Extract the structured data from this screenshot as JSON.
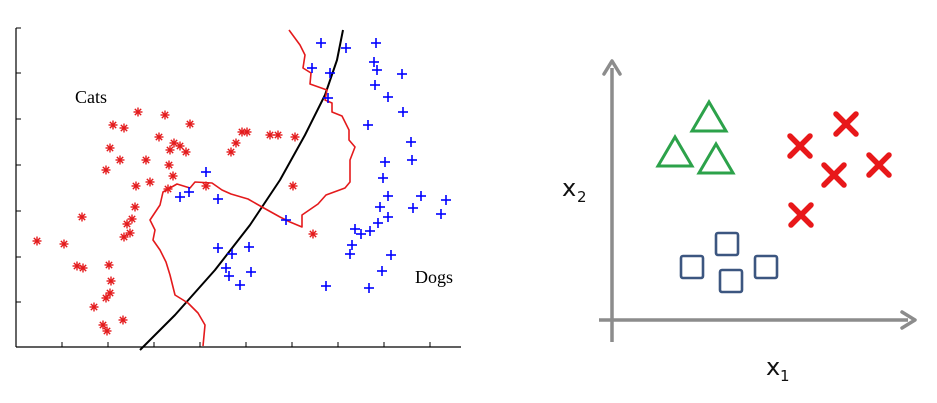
{
  "chart_data": [
    {
      "type": "scatter",
      "annotations": {
        "cats": "Cats",
        "dogs": "Dogs"
      },
      "series": [
        {
          "name": "Cats",
          "marker": "asterisk",
          "color": "#e41a1c",
          "points": [
            [
              113,
              125
            ],
            [
              124,
              128
            ],
            [
              138,
              112
            ],
            [
              165,
              115
            ],
            [
              190,
              124
            ],
            [
              242,
              132
            ],
            [
              247,
              132
            ],
            [
              270,
              135
            ],
            [
              278,
              135
            ],
            [
              295,
              137
            ],
            [
              110,
              148
            ],
            [
              120,
              160
            ],
            [
              146,
              160
            ],
            [
              159,
              137
            ],
            [
              170,
              150
            ],
            [
              180,
              146
            ],
            [
              174,
              143
            ],
            [
              231,
              152
            ],
            [
              236,
              143
            ],
            [
              293,
              186
            ],
            [
              106,
              170
            ],
            [
              136,
              186
            ],
            [
              150,
              182
            ],
            [
              173,
              176
            ],
            [
              169,
              165
            ],
            [
              168,
              189
            ],
            [
              186,
              152
            ],
            [
              206,
              186
            ],
            [
              313,
              234
            ],
            [
              37,
              241
            ],
            [
              64,
              244
            ],
            [
              82,
              217
            ],
            [
              127,
              224
            ],
            [
              130,
              233
            ],
            [
              135,
              207
            ],
            [
              132,
              219
            ],
            [
              124,
              237
            ],
            [
              77,
              266
            ],
            [
              83,
              268
            ],
            [
              109,
              265
            ],
            [
              111,
              281
            ],
            [
              94,
              307
            ],
            [
              106,
              298
            ],
            [
              123,
              320
            ],
            [
              103,
              325
            ],
            [
              107,
              331
            ],
            [
              110,
              293
            ]
          ]
        },
        {
          "name": "Dogs",
          "marker": "plus",
          "color": "#0000ff",
          "points": [
            [
              321,
              43
            ],
            [
              346,
              48
            ],
            [
              376,
              43
            ],
            [
              312,
              68
            ],
            [
              330,
              73
            ],
            [
              374,
              62
            ],
            [
              377,
              70
            ],
            [
              402,
              74
            ],
            [
              375,
              85
            ],
            [
              388,
              97
            ],
            [
              328,
              98
            ],
            [
              403,
              112
            ],
            [
              368,
              125
            ],
            [
              411,
              142
            ],
            [
              412,
              160
            ],
            [
              385,
              162
            ],
            [
              388,
              196
            ],
            [
              380,
              207
            ],
            [
              378,
              223
            ],
            [
              388,
              217
            ],
            [
              413,
              208
            ],
            [
              421,
              196
            ],
            [
              446,
              200
            ],
            [
              441,
              214
            ],
            [
              383,
              178
            ],
            [
              206,
              172
            ],
            [
              189,
              192
            ],
            [
              180,
              197
            ],
            [
              218,
              199
            ],
            [
              286,
              220
            ],
            [
              355,
              229
            ],
            [
              361,
              234
            ],
            [
              370,
              231
            ],
            [
              352,
              245
            ],
            [
              350,
              254
            ],
            [
              391,
              255
            ],
            [
              382,
              271
            ],
            [
              369,
              288
            ],
            [
              326,
              286
            ],
            [
              218,
              248
            ],
            [
              232,
              254
            ],
            [
              249,
              247
            ],
            [
              226,
              268
            ],
            [
              229,
              276
            ],
            [
              240,
              285
            ],
            [
              251,
              272
            ]
          ]
        }
      ],
      "curves": [
        {
          "name": "linear-boundary",
          "color": "#000000",
          "points": [
            [
              140,
              350
            ],
            [
              175,
              315
            ],
            [
              215,
              270
            ],
            [
              250,
              225
            ],
            [
              280,
              180
            ],
            [
              305,
              135
            ],
            [
              325,
              95
            ],
            [
              337,
              60
            ],
            [
              343,
              30
            ]
          ]
        },
        {
          "name": "nonlinear-boundary",
          "color": "#e41a1c",
          "points": [
            [
              289,
              30
            ],
            [
              300,
              45
            ],
            [
              305,
              55
            ],
            [
              303,
              68
            ],
            [
              311,
              73
            ],
            [
              310,
              84
            ],
            [
              327,
              90
            ],
            [
              325,
              100
            ],
            [
              332,
              103
            ],
            [
              332,
              112
            ],
            [
              342,
              116
            ],
            [
              349,
              130
            ],
            [
              349,
              140
            ],
            [
              355,
              147
            ],
            [
              350,
              160
            ],
            [
              350,
              182
            ],
            [
              345,
              188
            ],
            [
              326,
              195
            ],
            [
              318,
              204
            ],
            [
              302,
              215
            ],
            [
              302,
              227
            ],
            [
              290,
              222
            ],
            [
              280,
              217
            ],
            [
              262,
              207
            ],
            [
              248,
              199
            ],
            [
              231,
              194
            ],
            [
              222,
              190
            ],
            [
              212,
              183
            ],
            [
              195,
              182
            ],
            [
              190,
              188
            ],
            [
              177,
              184
            ],
            [
              163,
              192
            ],
            [
              160,
              205
            ],
            [
              150,
              220
            ],
            [
              155,
              230
            ],
            [
              153,
              240
            ],
            [
              160,
              250
            ],
            [
              166,
              262
            ],
            [
              170,
              275
            ],
            [
              175,
              295
            ],
            [
              188,
              303
            ],
            [
              198,
              313
            ],
            [
              205,
              325
            ],
            [
              203,
              346
            ]
          ]
        }
      ]
    },
    {
      "type": "scatter",
      "xlabel": "x",
      "xlabel_sub": "1",
      "ylabel": "x",
      "ylabel_sub": "2",
      "series": [
        {
          "marker": "triangle",
          "color": "#2ca24a",
          "points": [
            [
              709,
              118
            ],
            [
              675,
              153
            ],
            [
              716,
              160
            ]
          ]
        },
        {
          "marker": "cross",
          "color": "#e8181a",
          "points": [
            [
              846,
              124
            ],
            [
              800,
              146
            ],
            [
              879,
              165
            ],
            [
              834,
              175
            ],
            [
              801,
              215
            ]
          ]
        },
        {
          "marker": "square",
          "color": "#3c5680",
          "points": [
            [
              727,
              244
            ],
            [
              692,
              267
            ],
            [
              766,
              267
            ],
            [
              731,
              281
            ]
          ]
        }
      ]
    }
  ]
}
